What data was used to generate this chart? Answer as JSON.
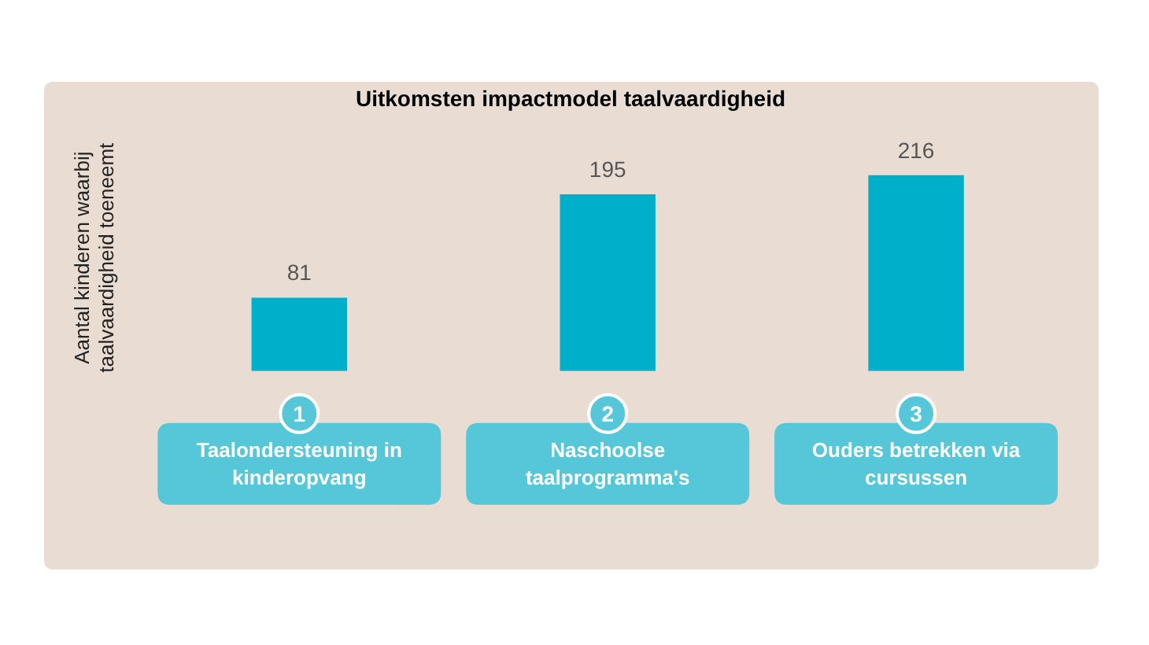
{
  "chart_data": {
    "type": "bar",
    "title": "Uitkomsten impactmodel taalvaardigheid",
    "ylabel": "Aantal kinderen waarbij taalvaardigheid toeneemt",
    "categories": [
      "Taalondersteuning in kinderopvang",
      "Naschoolse taalprogramma's",
      "Ouders betrekken via cursussen"
    ],
    "values": [
      81,
      195,
      216
    ],
    "color": "#00b0ca",
    "data_labels": true,
    "annotations": [
      "1",
      "2",
      "3"
    ],
    "grid": false,
    "legend": false
  }
}
